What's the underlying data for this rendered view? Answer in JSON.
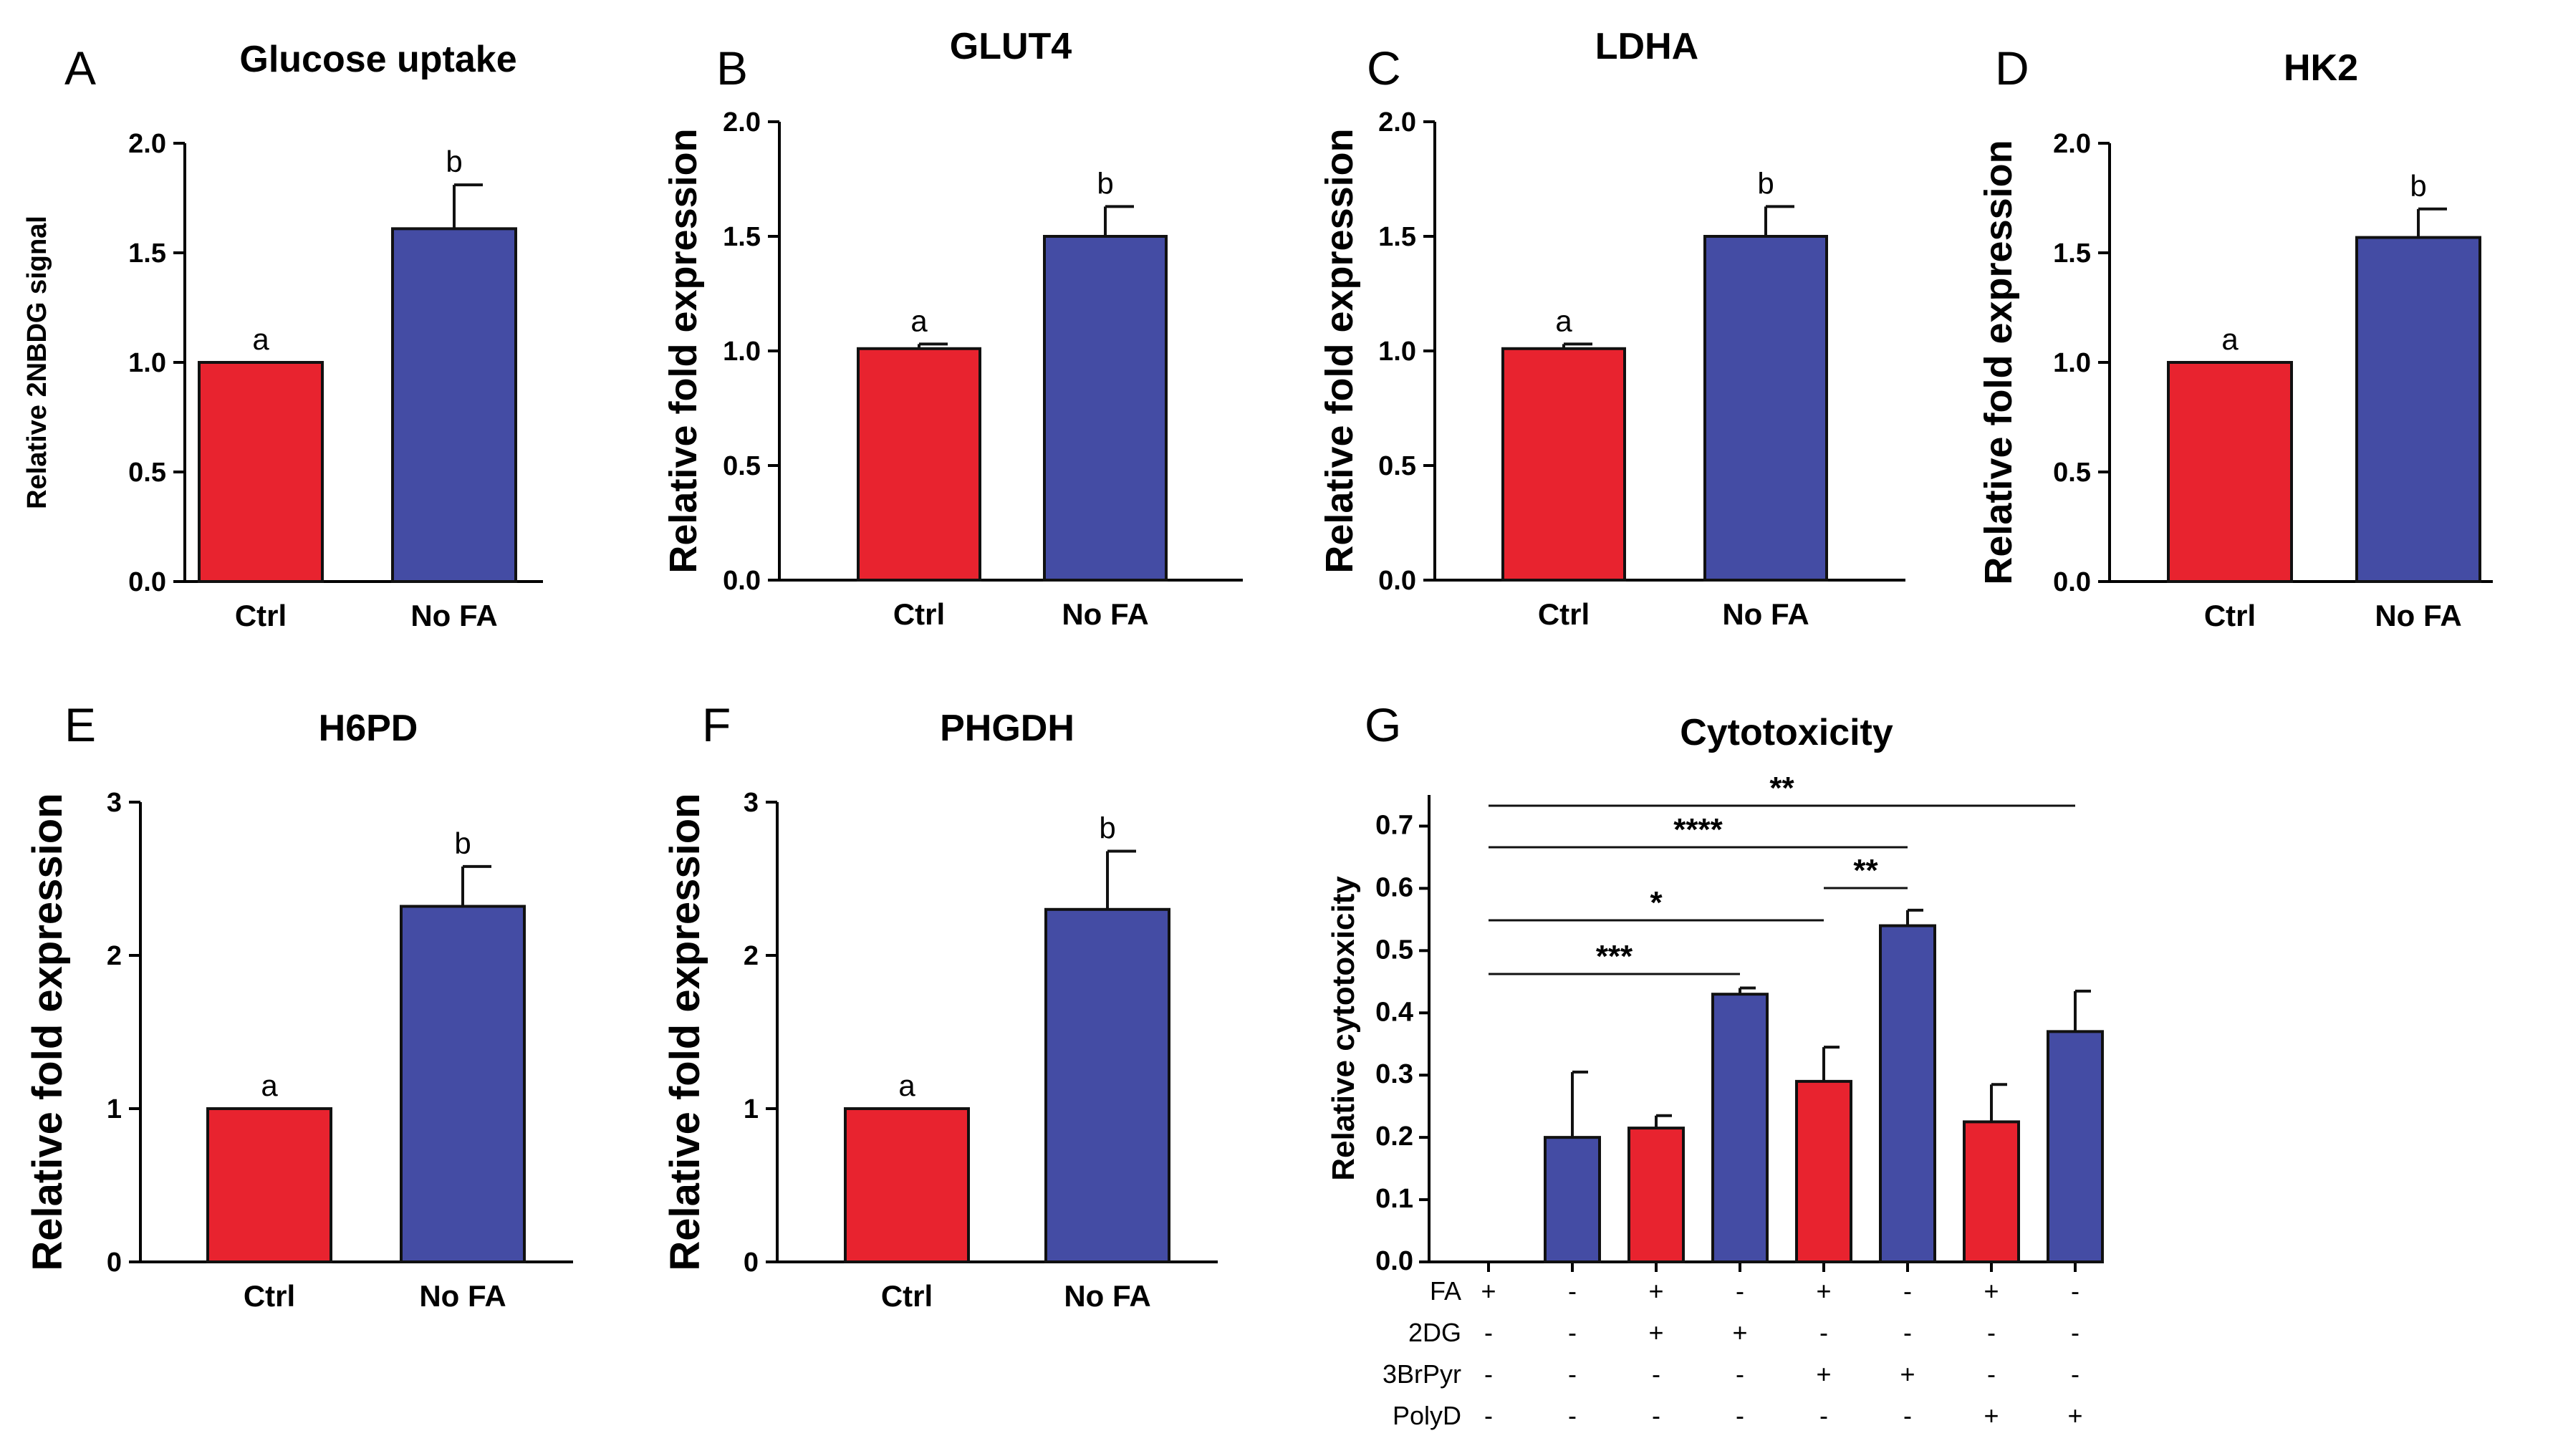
{
  "colors": {
    "ctrl": "#e8232f",
    "nofa": "#444ca4",
    "axis": "#000000"
  },
  "panels": [
    {
      "letter": "A",
      "title": "Glucose uptake",
      "ylabel": "Relative 2NBDG signal",
      "chart_data": {
        "type": "bar",
        "categories": [
          "Ctrl",
          "No FA"
        ],
        "values": [
          1.0,
          1.61
        ],
        "errors": [
          0.0,
          0.2
        ],
        "sig_letters": [
          "a",
          "b"
        ],
        "ylim": [
          0,
          2.0
        ],
        "yticks": [
          0.0,
          0.5,
          1.0,
          1.5,
          2.0
        ],
        "ytick_labels": [
          "0.0",
          "0.5",
          "1.0",
          "1.5",
          "2.0"
        ]
      }
    },
    {
      "letter": "B",
      "title": "GLUT4",
      "ylabel": "Relative fold expression",
      "chart_data": {
        "type": "bar",
        "categories": [
          "Ctrl",
          "No FA"
        ],
        "values": [
          1.01,
          1.5
        ],
        "errors": [
          0.02,
          0.13
        ],
        "sig_letters": [
          "a",
          "b"
        ],
        "ylim": [
          0,
          2.0
        ],
        "yticks": [
          0.0,
          0.5,
          1.0,
          1.5,
          2.0
        ],
        "ytick_labels": [
          "0.0",
          "0.5",
          "1.0",
          "1.5",
          "2.0"
        ]
      }
    },
    {
      "letter": "C",
      "title": "LDHA",
      "ylabel": "Relative fold expression",
      "chart_data": {
        "type": "bar",
        "categories": [
          "Ctrl",
          "No FA"
        ],
        "values": [
          1.01,
          1.5
        ],
        "errors": [
          0.02,
          0.13
        ],
        "sig_letters": [
          "a",
          "b"
        ],
        "ylim": [
          0,
          2.0
        ],
        "yticks": [
          0.0,
          0.5,
          1.0,
          1.5,
          2.0
        ],
        "ytick_labels": [
          "0.0",
          "0.5",
          "1.0",
          "1.5",
          "2.0"
        ]
      }
    },
    {
      "letter": "D",
      "title": "HK2",
      "ylabel": "Relative fold expression",
      "chart_data": {
        "type": "bar",
        "categories": [
          "Ctrl",
          "No FA"
        ],
        "values": [
          1.0,
          1.57
        ],
        "errors": [
          0.0,
          0.13
        ],
        "sig_letters": [
          "a",
          "b"
        ],
        "ylim": [
          0,
          2.0
        ],
        "yticks": [
          0.0,
          0.5,
          1.0,
          1.5,
          2.0
        ],
        "ytick_labels": [
          "0.0",
          "0.5",
          "1.0",
          "1.5",
          "2.0"
        ]
      }
    },
    {
      "letter": "E",
      "title": "H6PD",
      "ylabel": "Relative fold expression",
      "chart_data": {
        "type": "bar",
        "categories": [
          "Ctrl",
          "No FA"
        ],
        "values": [
          1.0,
          2.32
        ],
        "errors": [
          0.0,
          0.26
        ],
        "sig_letters": [
          "a",
          "b"
        ],
        "ylim": [
          0,
          3
        ],
        "yticks": [
          0,
          1,
          2,
          3
        ],
        "ytick_labels": [
          "0",
          "1",
          "2",
          "3"
        ]
      }
    },
    {
      "letter": "F",
      "title": "PHGDH",
      "ylabel": "Relative fold expression",
      "chart_data": {
        "type": "bar",
        "categories": [
          "Ctrl",
          "No FA"
        ],
        "values": [
          1.0,
          2.3
        ],
        "errors": [
          0.0,
          0.38
        ],
        "sig_letters": [
          "a",
          "b"
        ],
        "ylim": [
          0,
          3
        ],
        "yticks": [
          0,
          1,
          2,
          3
        ],
        "ytick_labels": [
          "0",
          "1",
          "2",
          "3"
        ]
      }
    }
  ],
  "cytotoxicity": {
    "letter": "G",
    "title": "Cytotoxicity",
    "ylabel": "Relative cytotoxicity",
    "chart_data": {
      "type": "bar",
      "values": [
        0.0,
        0.2,
        0.215,
        0.43,
        0.29,
        0.54,
        0.225,
        0.37
      ],
      "errors": [
        0.0,
        0.105,
        0.02,
        0.01,
        0.055,
        0.025,
        0.06,
        0.065
      ],
      "bar_colors": [
        "ctrl",
        "nofa",
        "ctrl",
        "nofa",
        "ctrl",
        "nofa",
        "ctrl",
        "nofa"
      ],
      "ylim": [
        0,
        0.75
      ],
      "yticks": [
        0.0,
        0.1,
        0.2,
        0.3,
        0.4,
        0.5,
        0.6,
        0.7
      ],
      "ytick_labels": [
        "0.0",
        "0.1",
        "0.2",
        "0.3",
        "0.4",
        "0.5",
        "0.6",
        "0.7"
      ],
      "treatments": [
        {
          "name": "FA",
          "signs": [
            "+",
            "-",
            "+",
            "-",
            "+",
            "-",
            "+",
            "-"
          ]
        },
        {
          "name": "2DG",
          "signs": [
            "-",
            "-",
            "+",
            "+",
            "-",
            "-",
            "-",
            "-"
          ]
        },
        {
          "name": "3BrPyr",
          "signs": [
            "-",
            "-",
            "-",
            "-",
            "+",
            "+",
            "-",
            "-"
          ]
        },
        {
          "name": "PolyD",
          "signs": [
            "-",
            "-",
            "-",
            "-",
            "-",
            "-",
            "+",
            "+"
          ]
        }
      ],
      "comparisons": [
        {
          "from": 0,
          "to": 7,
          "label": "**"
        },
        {
          "from": 0,
          "to": 5,
          "label": "****"
        },
        {
          "from": 4,
          "to": 5,
          "label": "**"
        },
        {
          "from": 0,
          "to": 4,
          "label": "*"
        },
        {
          "from": 0,
          "to": 3,
          "label": "***"
        }
      ]
    }
  }
}
